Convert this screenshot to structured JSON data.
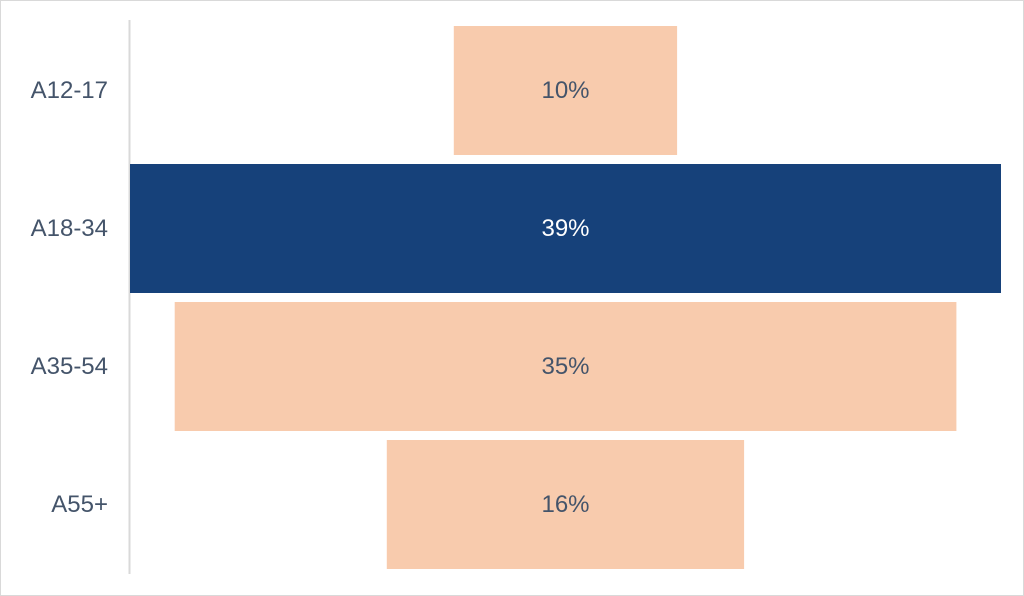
{
  "chart_data": {
    "type": "bar",
    "orientation": "horizontal-centered",
    "categories": [
      "A12-17",
      "A18-34",
      "A35-54",
      "A55+"
    ],
    "values": [
      10,
      39,
      35,
      16
    ],
    "value_labels": [
      "10%",
      "39%",
      "35%",
      "16%"
    ],
    "unit": "%",
    "highlight_index": 1,
    "title": "",
    "xlabel": "",
    "ylabel": "",
    "xlim": [
      0,
      39
    ],
    "grid": false,
    "legend": "none"
  },
  "colors": {
    "bar": "#f8cbad",
    "highlight": "#16417a",
    "label_on_bar": "#44546a",
    "label_on_highlight": "#ffffff",
    "axis_line": "#d9d9d9",
    "category_label": "#44546a"
  }
}
